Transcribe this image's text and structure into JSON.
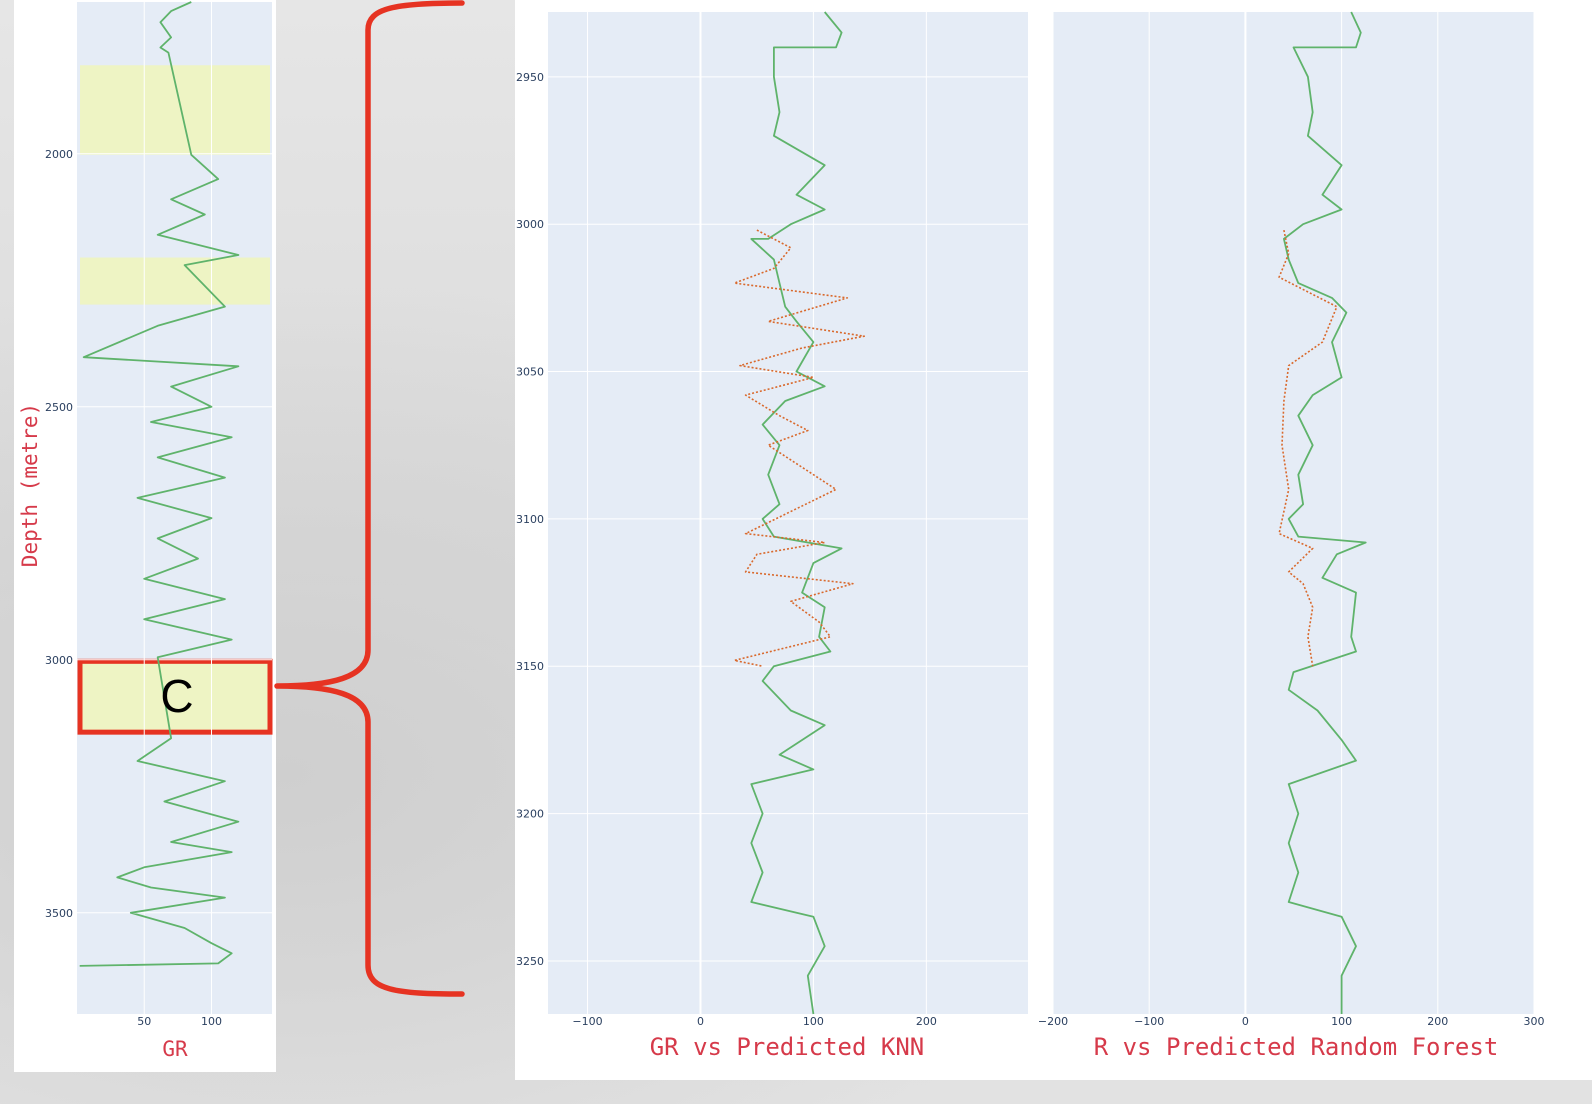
{
  "colors": {
    "plot_bg": "#e5ecf6",
    "grid": "#ffffff",
    "gr_line": "#5fb36b",
    "pred_line": "#d9692c",
    "highlight": "#eef4c4",
    "bracket": "#e63322",
    "axis_title": "#d63a4a",
    "tick_text": "#2a3f5f"
  },
  "chart_data": [
    {
      "type": "line",
      "name": "full-well-log",
      "xlabel": "GR",
      "ylabel": "Depth (metre)",
      "xlim": [
        0,
        145
      ],
      "ylim": [
        1700,
        3700
      ],
      "y_reversed": true,
      "xticks": [
        50,
        100
      ],
      "yticks": [
        2000,
        2500,
        3000,
        3500
      ],
      "highlight_zones": [
        {
          "from": 1825,
          "to": 2002,
          "label": ""
        },
        {
          "from": 2205,
          "to": 2298,
          "label": ""
        },
        {
          "from": 3003,
          "to": 3143,
          "label": "C"
        }
      ],
      "series": [
        {
          "style": "solid",
          "points": [
            [
              85,
              1700
            ],
            [
              70,
              1718
            ],
            [
              62,
              1740
            ],
            [
              70,
              1770
            ],
            [
              62,
              1790
            ],
            [
              68,
              1800
            ],
            [
              85,
              2002
            ],
            [
              105,
              2050
            ],
            [
              70,
              2090
            ],
            [
              95,
              2120
            ],
            [
              60,
              2160
            ],
            [
              120,
              2200
            ],
            [
              80,
              2220
            ],
            [
              110,
              2302
            ],
            [
              60,
              2340
            ],
            [
              5,
              2402
            ],
            [
              120,
              2420
            ],
            [
              70,
              2460
            ],
            [
              100,
              2500
            ],
            [
              55,
              2530
            ],
            [
              115,
              2560
            ],
            [
              60,
              2600
            ],
            [
              110,
              2640
            ],
            [
              45,
              2680
            ],
            [
              100,
              2720
            ],
            [
              60,
              2760
            ],
            [
              90,
              2800
            ],
            [
              50,
              2840
            ],
            [
              110,
              2880
            ],
            [
              50,
              2920
            ],
            [
              115,
              2960
            ],
            [
              60,
              2995
            ],
            [
              70,
              3155
            ],
            [
              45,
              3200
            ],
            [
              110,
              3240
            ],
            [
              65,
              3280
            ],
            [
              120,
              3320
            ],
            [
              70,
              3360
            ],
            [
              115,
              3380
            ],
            [
              50,
              3410
            ],
            [
              30,
              3430
            ],
            [
              55,
              3450
            ],
            [
              110,
              3470
            ],
            [
              40,
              3500
            ],
            [
              80,
              3530
            ],
            [
              100,
              3560
            ],
            [
              115,
              3580
            ],
            [
              105,
              3600
            ],
            [
              2,
              3605
            ]
          ]
        }
      ]
    },
    {
      "type": "line",
      "name": "gr-vs-knn",
      "xlabel": "GR vs Predicted KNN",
      "xlim": [
        -135,
        290
      ],
      "ylim": [
        2928,
        3268
      ],
      "y_reversed": true,
      "xticks": [
        -100,
        0,
        100,
        200
      ],
      "yticks": [
        2950,
        3000,
        3050,
        3100,
        3150,
        3200,
        3250
      ],
      "series": [
        {
          "style": "solid",
          "points": [
            [
              110,
              2928
            ],
            [
              125,
              2935
            ],
            [
              120,
              2940
            ],
            [
              65,
              2940
            ],
            [
              65,
              2950
            ],
            [
              70,
              2962
            ],
            [
              65,
              2970
            ],
            [
              110,
              2980
            ],
            [
              85,
              2990
            ],
            [
              110,
              2995
            ],
            [
              80,
              3000
            ],
            [
              60,
              3005
            ],
            [
              45,
              3005
            ],
            [
              65,
              3012
            ],
            [
              70,
              3020
            ],
            [
              75,
              3028
            ],
            [
              85,
              3033
            ],
            [
              100,
              3040
            ],
            [
              85,
              3050
            ],
            [
              110,
              3055
            ],
            [
              75,
              3060
            ],
            [
              55,
              3068
            ],
            [
              70,
              3075
            ],
            [
              60,
              3085
            ],
            [
              70,
              3095
            ],
            [
              55,
              3100
            ],
            [
              65,
              3106
            ],
            [
              125,
              3110
            ],
            [
              100,
              3115
            ],
            [
              90,
              3125
            ],
            [
              110,
              3130
            ],
            [
              105,
              3140
            ],
            [
              115,
              3145
            ],
            [
              65,
              3150
            ],
            [
              55,
              3155
            ],
            [
              80,
              3165
            ],
            [
              110,
              3170
            ],
            [
              70,
              3180
            ],
            [
              100,
              3185
            ],
            [
              45,
              3190
            ],
            [
              55,
              3200
            ],
            [
              45,
              3210
            ],
            [
              55,
              3220
            ],
            [
              45,
              3230
            ],
            [
              100,
              3235
            ],
            [
              110,
              3245
            ],
            [
              95,
              3255
            ],
            [
              100,
              3268
            ]
          ]
        },
        {
          "style": "dotted",
          "points": [
            [
              50,
              3002
            ],
            [
              80,
              3008
            ],
            [
              65,
              3015
            ],
            [
              30,
              3020
            ],
            [
              130,
              3025
            ],
            [
              60,
              3033
            ],
            [
              145,
              3038
            ],
            [
              90,
              3042
            ],
            [
              35,
              3048
            ],
            [
              100,
              3052
            ],
            [
              40,
              3058
            ],
            [
              70,
              3065
            ],
            [
              95,
              3070
            ],
            [
              60,
              3075
            ],
            [
              120,
              3090
            ],
            [
              40,
              3105
            ],
            [
              110,
              3108
            ],
            [
              50,
              3112
            ],
            [
              40,
              3118
            ],
            [
              135,
              3122
            ],
            [
              80,
              3128
            ],
            [
              105,
              3135
            ],
            [
              115,
              3140
            ],
            [
              30,
              3148
            ],
            [
              55,
              3150
            ]
          ]
        }
      ]
    },
    {
      "type": "line",
      "name": "gr-vs-random-forest",
      "xlabel": "R vs Predicted Random Forest",
      "xlim": [
        -200,
        300
      ],
      "ylim": [
        2928,
        3268
      ],
      "y_reversed": true,
      "xticks": [
        -200,
        -100,
        0,
        100,
        200,
        300
      ],
      "series": [
        {
          "style": "solid",
          "points": [
            [
              110,
              2928
            ],
            [
              120,
              2935
            ],
            [
              115,
              2940
            ],
            [
              50,
              2940
            ],
            [
              65,
              2950
            ],
            [
              70,
              2962
            ],
            [
              65,
              2970
            ],
            [
              100,
              2980
            ],
            [
              80,
              2990
            ],
            [
              100,
              2995
            ],
            [
              60,
              3000
            ],
            [
              40,
              3005
            ],
            [
              45,
              3012
            ],
            [
              55,
              3020
            ],
            [
              90,
              3025
            ],
            [
              105,
              3030
            ],
            [
              90,
              3040
            ],
            [
              100,
              3052
            ],
            [
              70,
              3058
            ],
            [
              55,
              3065
            ],
            [
              70,
              3075
            ],
            [
              55,
              3085
            ],
            [
              60,
              3095
            ],
            [
              45,
              3100
            ],
            [
              55,
              3106
            ],
            [
              125,
              3108
            ],
            [
              95,
              3112
            ],
            [
              80,
              3120
            ],
            [
              115,
              3125
            ],
            [
              110,
              3140
            ],
            [
              115,
              3145
            ],
            [
              50,
              3152
            ],
            [
              45,
              3158
            ],
            [
              75,
              3165
            ],
            [
              100,
              3175
            ],
            [
              115,
              3182
            ],
            [
              45,
              3190
            ],
            [
              55,
              3200
            ],
            [
              45,
              3210
            ],
            [
              55,
              3220
            ],
            [
              45,
              3230
            ],
            [
              100,
              3235
            ],
            [
              115,
              3245
            ],
            [
              100,
              3255
            ],
            [
              100,
              3268
            ]
          ]
        },
        {
          "style": "dotted",
          "points": [
            [
              40,
              3002
            ],
            [
              45,
              3010
            ],
            [
              35,
              3018
            ],
            [
              95,
              3028
            ],
            [
              80,
              3040
            ],
            [
              45,
              3048
            ],
            [
              40,
              3060
            ],
            [
              38,
              3075
            ],
            [
              45,
              3090
            ],
            [
              35,
              3105
            ],
            [
              70,
              3110
            ],
            [
              45,
              3118
            ],
            [
              60,
              3122
            ],
            [
              70,
              3130
            ],
            [
              65,
              3140
            ],
            [
              70,
              3150
            ]
          ]
        }
      ]
    }
  ]
}
